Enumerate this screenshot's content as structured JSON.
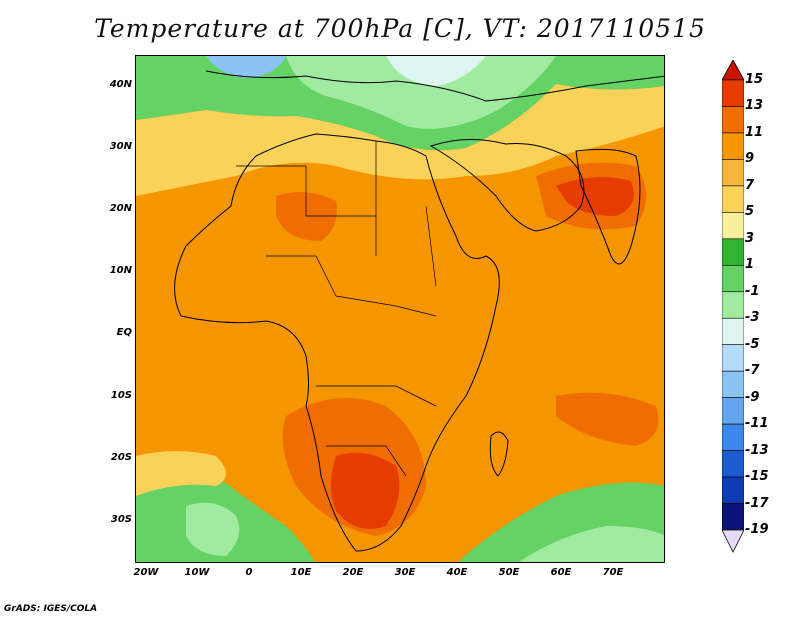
{
  "title": "Temperature at 700hPa [C], VT: 2017110515",
  "credit": "GrADS: IGES/COLA",
  "map": {
    "lat_labels": [
      "40N",
      "30N",
      "20N",
      "10N",
      "EQ",
      "10S",
      "20S",
      "30S"
    ],
    "lon_labels": [
      "20W",
      "10W",
      "0",
      "10E",
      "20E",
      "30E",
      "40E",
      "50E",
      "60E",
      "70E"
    ]
  },
  "colorbar": {
    "labels": [
      "15",
      "13",
      "11",
      "9",
      "7",
      "5",
      "3",
      "1",
      "-1",
      "-3",
      "-5",
      "-7",
      "-9",
      "-11",
      "-13",
      "-15",
      "-17",
      "-19"
    ],
    "colors": [
      "#c81400",
      "#e63c00",
      "#f06e00",
      "#f59600",
      "#f5b43c",
      "#fad25a",
      "#faf09b",
      "#32b432",
      "#64d264",
      "#a0eba0",
      "#dcf5f0",
      "#b4dcfa",
      "#8cc3f5",
      "#64a5f0",
      "#3c87eb",
      "#1e5ad2",
      "#0f3cb4",
      "#0a1478",
      "#e6dcf5"
    ]
  },
  "chart_data": {
    "type": "heatmap",
    "title": "Temperature at 700hPa [C], VT: 2017110515",
    "x_ticks": [
      "20W",
      "10W",
      "0",
      "10E",
      "20E",
      "30E",
      "40E",
      "50E",
      "60E",
      "70E"
    ],
    "y_ticks": [
      "40N",
      "30N",
      "20N",
      "10N",
      "EQ",
      "10S",
      "20S",
      "30S"
    ],
    "xlim": [
      -22,
      80
    ],
    "ylim": [
      -36,
      45
    ],
    "colorbar_levels": [
      15,
      13,
      11,
      9,
      7,
      5,
      3,
      1,
      -1,
      -3,
      -5,
      -7,
      -9,
      -11,
      -13,
      -15,
      -17,
      -19
    ],
    "grid": false
  }
}
